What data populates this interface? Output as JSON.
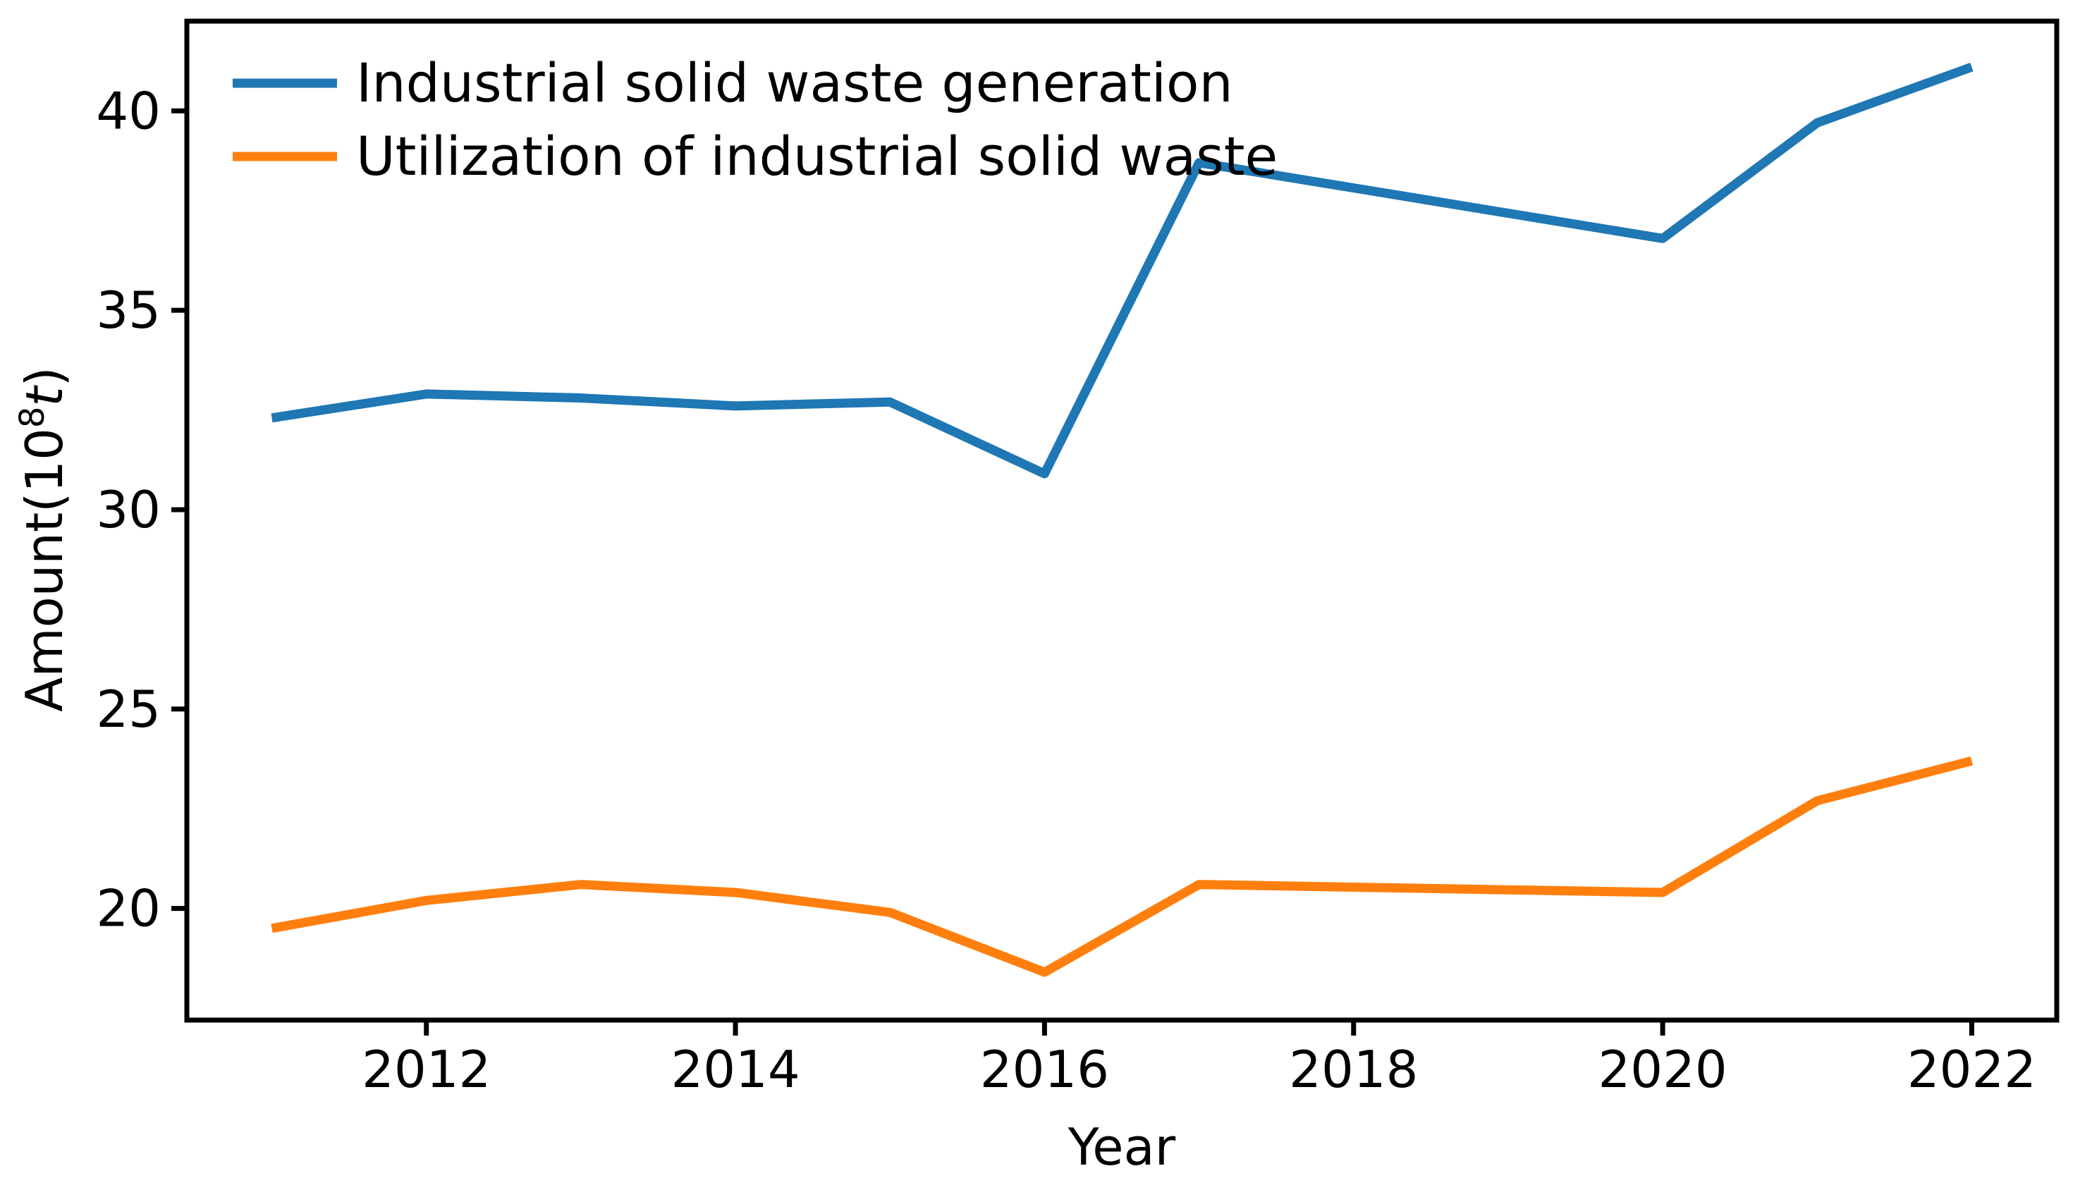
{
  "figure": {
    "background_color": "#ffffff",
    "axis_color": "#000000",
    "text_color": "#000000"
  },
  "chart_data": {
    "type": "line",
    "title": "",
    "xlabel": "Year",
    "ylabel": "Amount(10⁸t)",
    "ylabel_parts": {
      "prefix": "Amount(10",
      "superscript": "8",
      "unit": "t",
      "suffix": ")"
    },
    "x": [
      2011,
      2012,
      2013,
      2014,
      2015,
      2016,
      2017,
      2020,
      2021,
      2022
    ],
    "series": [
      {
        "name": "Industrial solid waste generation",
        "color": "#1f77b4",
        "values": [
          32.3,
          32.9,
          32.8,
          32.6,
          32.7,
          30.9,
          38.7,
          36.8,
          39.7,
          41.1
        ]
      },
      {
        "name": "Utilization of industrial solid waste",
        "color": "#ff7f0e",
        "values": [
          19.5,
          20.2,
          20.6,
          20.4,
          19.9,
          18.4,
          20.6,
          20.4,
          22.7,
          23.7
        ]
      }
    ],
    "x_ticks": [
      2012,
      2014,
      2016,
      2018,
      2020,
      2022
    ],
    "y_ticks": [
      20,
      25,
      30,
      35,
      40
    ],
    "xlim": [
      2010.45,
      2022.55
    ],
    "ylim": [
      17.2,
      42.25
    ],
    "grid": false,
    "legend_position": "upper left",
    "legend_frame": false
  }
}
